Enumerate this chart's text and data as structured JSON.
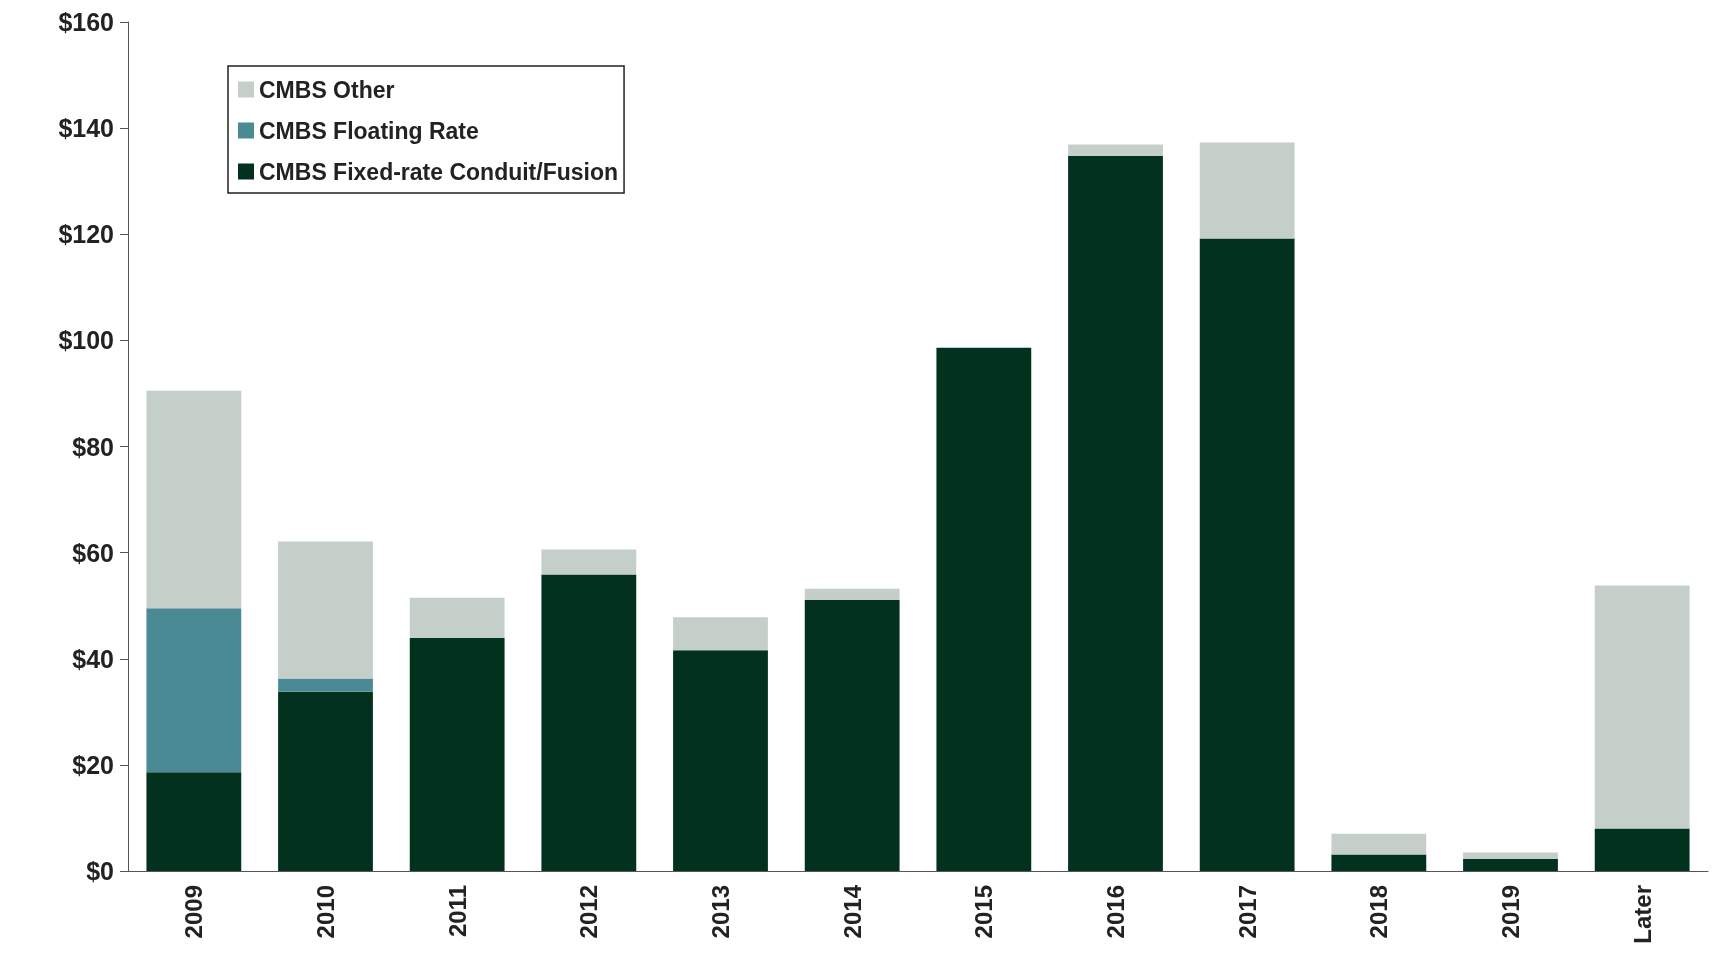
{
  "chart_data": {
    "type": "bar",
    "stacked": true,
    "legend": "top left",
    "grid": false,
    "categories": [
      "2009",
      "2010",
      "2011",
      "2012",
      "2013",
      "2014",
      "2015",
      "2016",
      "2017",
      "2018",
      "2019",
      "Later"
    ],
    "series": [
      {
        "name": "CMBS Fixed-rate Conduit/Fusion",
        "color": "#02311e",
        "values": [
          18.6,
          33.8,
          43.9,
          55.9,
          41.6,
          51.1,
          98.6,
          134.8,
          119.2,
          3.1,
          2.3,
          8.0
        ]
      },
      {
        "name": "CMBS Floating Rate",
        "color": "#4a8a94",
        "values": [
          30.9,
          2.5,
          0,
          0,
          0,
          0,
          0,
          0,
          0,
          0,
          0,
          0
        ]
      },
      {
        "name": "CMBS Other",
        "color": "#c5cfc9",
        "values": [
          41.0,
          25.8,
          7.6,
          4.7,
          6.2,
          2.1,
          0,
          2.1,
          18.1,
          3.9,
          1.2,
          45.8
        ]
      }
    ],
    "ylim": [
      0,
      160
    ],
    "yticks": [
      {
        "value": 0,
        "label": "$0"
      },
      {
        "value": 20,
        "label": "$20"
      },
      {
        "value": 40,
        "label": "$40"
      },
      {
        "value": 60,
        "label": "$60"
      },
      {
        "value": 80,
        "label": "$80"
      },
      {
        "value": 100,
        "label": "$100"
      },
      {
        "value": 120,
        "label": "$120"
      },
      {
        "value": 140,
        "label": "$140"
      },
      {
        "value": 160,
        "label": "$160"
      }
    ]
  }
}
